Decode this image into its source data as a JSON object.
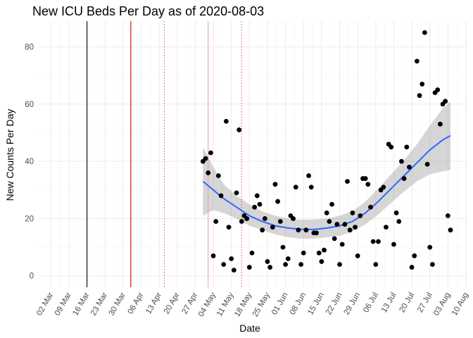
{
  "chart_data": {
    "type": "scatter",
    "title": "New ICU Beds Per Day as of 2020-08-03",
    "xlabel": "Date",
    "ylabel": "New Counts Per Day",
    "x_type": "date",
    "xlim": [
      "2020-02-26",
      "2020-08-10"
    ],
    "ylim": [
      -4,
      89
    ],
    "x_ticks": [
      {
        "date": "2020-03-02",
        "label": "02 Mar"
      },
      {
        "date": "2020-03-09",
        "label": "09 Mar"
      },
      {
        "date": "2020-03-16",
        "label": "16 Mar"
      },
      {
        "date": "2020-03-23",
        "label": "23 Mar"
      },
      {
        "date": "2020-03-30",
        "label": "30 Mar"
      },
      {
        "date": "2020-04-06",
        "label": "06 Apr"
      },
      {
        "date": "2020-04-13",
        "label": "13 Apr"
      },
      {
        "date": "2020-04-20",
        "label": "20 Apr"
      },
      {
        "date": "2020-04-27",
        "label": "27 Apr"
      },
      {
        "date": "2020-05-04",
        "label": "04 May"
      },
      {
        "date": "2020-05-11",
        "label": "11 May"
      },
      {
        "date": "2020-05-18",
        "label": "18 May"
      },
      {
        "date": "2020-05-25",
        "label": "25 May"
      },
      {
        "date": "2020-06-01",
        "label": "01 Jun"
      },
      {
        "date": "2020-06-08",
        "label": "08 Jun"
      },
      {
        "date": "2020-06-15",
        "label": "15 Jun"
      },
      {
        "date": "2020-06-22",
        "label": "22 Jun"
      },
      {
        "date": "2020-06-29",
        "label": "29 Jun"
      },
      {
        "date": "2020-07-06",
        "label": "06 Jul"
      },
      {
        "date": "2020-07-13",
        "label": "13 Jul"
      },
      {
        "date": "2020-07-20",
        "label": "20 Jul"
      },
      {
        "date": "2020-07-27",
        "label": "27 Jul"
      },
      {
        "date": "2020-08-03",
        "label": "03 Aug"
      },
      {
        "date": "2020-08-10",
        "label": "10 Aug"
      }
    ],
    "y_ticks": [
      0,
      20,
      40,
      60,
      80
    ],
    "grid": true,
    "colors": {
      "points": "#000000",
      "smooth_line": "#3366ff",
      "ribbon": "#999999",
      "grid": "#ebebeb",
      "vline_black": "#000000",
      "vline_red": "#cc0000",
      "vline_dotted": "#e06060",
      "vline_pink": "#f0a0a0"
    },
    "vlines": [
      {
        "date": "2020-03-16",
        "color": "#000000",
        "style": "solid"
      },
      {
        "date": "2020-04-02",
        "color": "#cc0000",
        "style": "solid"
      },
      {
        "date": "2020-04-15",
        "color": "#e06060",
        "style": "dotted"
      },
      {
        "date": "2020-05-02",
        "color": "#f0a0a0",
        "style": "solid"
      },
      {
        "date": "2020-05-15",
        "color": "#e06060",
        "style": "dotted"
      }
    ],
    "series": [
      {
        "kind": "points",
        "points": [
          [
            "2020-04-30",
            40
          ],
          [
            "2020-05-01",
            41
          ],
          [
            "2020-05-02",
            36
          ],
          [
            "2020-05-03",
            43
          ],
          [
            "2020-05-04",
            7
          ],
          [
            "2020-05-05",
            19
          ],
          [
            "2020-05-06",
            35
          ],
          [
            "2020-05-07",
            28
          ],
          [
            "2020-05-08",
            4
          ],
          [
            "2020-05-09",
            54
          ],
          [
            "2020-05-10",
            17
          ],
          [
            "2020-05-11",
            6
          ],
          [
            "2020-05-12",
            2
          ],
          [
            "2020-05-13",
            29
          ],
          [
            "2020-05-14",
            51
          ],
          [
            "2020-05-15",
            19
          ],
          [
            "2020-05-16",
            21
          ],
          [
            "2020-05-17",
            20
          ],
          [
            "2020-05-18",
            3
          ],
          [
            "2020-05-19",
            8
          ],
          [
            "2020-05-20",
            24
          ],
          [
            "2020-05-21",
            28
          ],
          [
            "2020-05-22",
            25
          ],
          [
            "2020-05-23",
            16
          ],
          [
            "2020-05-24",
            20
          ],
          [
            "2020-05-25",
            5
          ],
          [
            "2020-05-26",
            3
          ],
          [
            "2020-05-27",
            17
          ],
          [
            "2020-05-28",
            32
          ],
          [
            "2020-05-29",
            26
          ],
          [
            "2020-05-30",
            19
          ],
          [
            "2020-05-31",
            10
          ],
          [
            "2020-06-01",
            4
          ],
          [
            "2020-06-02",
            6
          ],
          [
            "2020-06-03",
            21
          ],
          [
            "2020-06-04",
            20
          ],
          [
            "2020-06-05",
            31
          ],
          [
            "2020-06-06",
            16
          ],
          [
            "2020-06-07",
            4
          ],
          [
            "2020-06-08",
            8
          ],
          [
            "2020-06-09",
            16
          ],
          [
            "2020-06-10",
            35
          ],
          [
            "2020-06-11",
            31
          ],
          [
            "2020-06-12",
            15
          ],
          [
            "2020-06-13",
            15
          ],
          [
            "2020-06-14",
            8
          ],
          [
            "2020-06-15",
            5
          ],
          [
            "2020-06-16",
            9
          ],
          [
            "2020-06-17",
            22
          ],
          [
            "2020-06-18",
            19
          ],
          [
            "2020-06-19",
            25
          ],
          [
            "2020-06-20",
            13
          ],
          [
            "2020-06-21",
            18
          ],
          [
            "2020-06-22",
            4
          ],
          [
            "2020-06-23",
            11
          ],
          [
            "2020-06-24",
            18
          ],
          [
            "2020-06-25",
            33
          ],
          [
            "2020-06-26",
            16
          ],
          [
            "2020-06-27",
            22
          ],
          [
            "2020-06-28",
            17
          ],
          [
            "2020-06-29",
            7
          ],
          [
            "2020-06-30",
            21
          ],
          [
            "2020-07-01",
            34
          ],
          [
            "2020-07-02",
            34
          ],
          [
            "2020-07-03",
            32
          ],
          [
            "2020-07-04",
            24
          ],
          [
            "2020-07-05",
            12
          ],
          [
            "2020-07-06",
            4
          ],
          [
            "2020-07-07",
            12
          ],
          [
            "2020-07-08",
            30
          ],
          [
            "2020-07-09",
            31
          ],
          [
            "2020-07-10",
            17
          ],
          [
            "2020-07-11",
            46
          ],
          [
            "2020-07-12",
            45
          ],
          [
            "2020-07-13",
            11
          ],
          [
            "2020-07-14",
            22
          ],
          [
            "2020-07-15",
            19
          ],
          [
            "2020-07-16",
            40
          ],
          [
            "2020-07-17",
            34
          ],
          [
            "2020-07-18",
            45
          ],
          [
            "2020-07-19",
            38
          ],
          [
            "2020-07-20",
            3
          ],
          [
            "2020-07-21",
            7
          ],
          [
            "2020-07-22",
            75
          ],
          [
            "2020-07-23",
            63
          ],
          [
            "2020-07-24",
            67
          ],
          [
            "2020-07-25",
            85
          ],
          [
            "2020-07-26",
            39
          ],
          [
            "2020-07-27",
            10
          ],
          [
            "2020-07-28",
            4
          ],
          [
            "2020-07-29",
            64
          ],
          [
            "2020-07-30",
            65
          ],
          [
            "2020-07-31",
            53
          ],
          [
            "2020-08-01",
            60
          ],
          [
            "2020-08-02",
            61
          ],
          [
            "2020-08-03",
            21
          ],
          [
            "2020-08-04",
            16
          ]
        ]
      },
      {
        "kind": "smooth",
        "points": [
          [
            "2020-04-30",
            33,
            21,
            45
          ],
          [
            "2020-05-04",
            30,
            23,
            38
          ],
          [
            "2020-05-08",
            27,
            22,
            32
          ],
          [
            "2020-05-13",
            24,
            20,
            28
          ],
          [
            "2020-05-18",
            21,
            17.5,
            25
          ],
          [
            "2020-05-23",
            19,
            16,
            22.5
          ],
          [
            "2020-05-28",
            17.5,
            14.5,
            21
          ],
          [
            "2020-06-02",
            16.7,
            13.5,
            20
          ],
          [
            "2020-06-07",
            16.3,
            13,
            19.6
          ],
          [
            "2020-06-12",
            16.2,
            13,
            19.7
          ],
          [
            "2020-06-17",
            16.7,
            13.5,
            20
          ],
          [
            "2020-06-22",
            17.5,
            14,
            21
          ],
          [
            "2020-06-27",
            19,
            15.5,
            22.5
          ],
          [
            "2020-07-02",
            22,
            18,
            26
          ],
          [
            "2020-07-07",
            26,
            21.5,
            30.5
          ],
          [
            "2020-07-12",
            30.5,
            25.5,
            35.5
          ],
          [
            "2020-07-17",
            35,
            29.5,
            40.5
          ],
          [
            "2020-07-22",
            39.5,
            33,
            46
          ],
          [
            "2020-07-27",
            44,
            35.5,
            52.5
          ],
          [
            "2020-08-01",
            47.5,
            36.5,
            58.5
          ],
          [
            "2020-08-04",
            49,
            37,
            61
          ]
        ]
      }
    ]
  }
}
